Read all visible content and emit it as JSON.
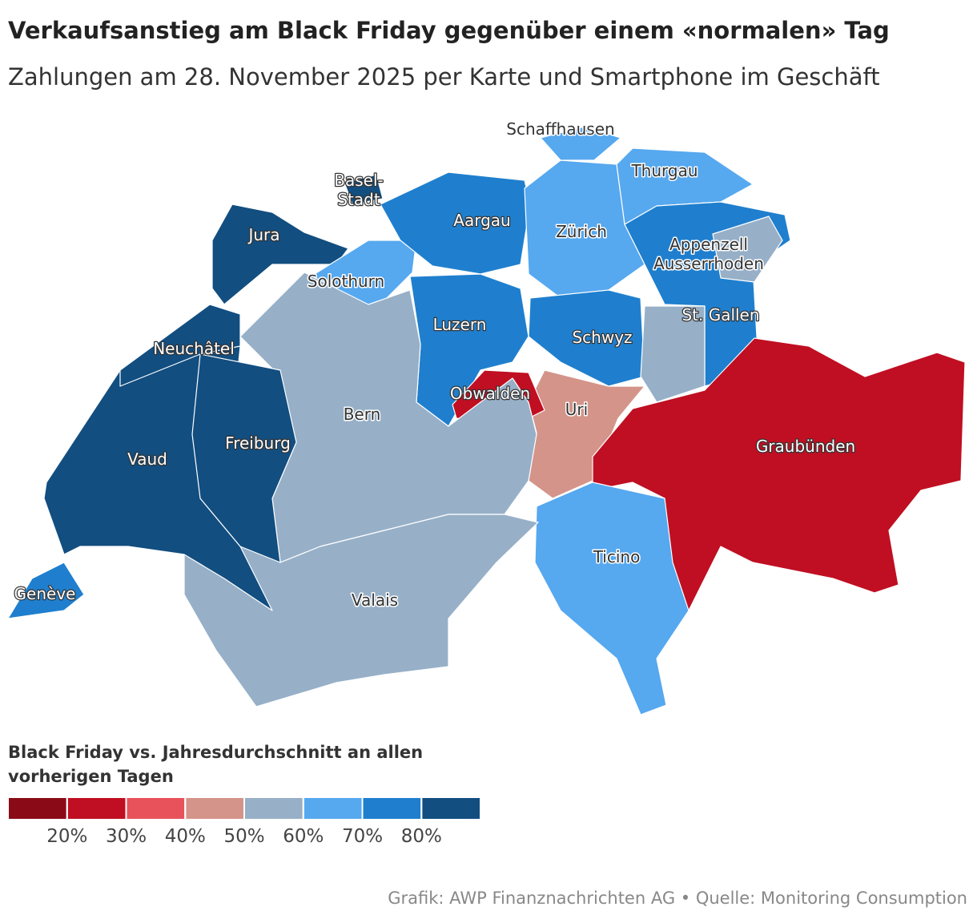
{
  "header": {
    "title": "Verkaufsanstieg am Black Friday gegenüber einem «normalen» Tag",
    "subtitle": "Zahlungen am 28. November 2025 per Karte und Smartphone im Geschäft"
  },
  "map": {
    "regions": [
      {
        "label": "Jura",
        "color": "#124e80"
      },
      {
        "label": "Basel-\nStadt",
        "color": "#124e80"
      },
      {
        "label": "Solothurn",
        "color": "#56a8ef"
      },
      {
        "label": "Aargau",
        "color": "#1f7fce"
      },
      {
        "label": "Zürich",
        "color": "#56a8ef"
      },
      {
        "label": "Thurgau",
        "color": "#56a8ef"
      },
      {
        "label": "Schaffhausen",
        "color": "#56a8ef"
      },
      {
        "label": "St. Gallen",
        "color": "#1f7fce"
      },
      {
        "label": "Appenzell\nAusserrhoden",
        "color": "#97b0c8"
      },
      {
        "label": "Luzern",
        "color": "#1f7fce"
      },
      {
        "label": "Schwyz",
        "color": "#1f7fce"
      },
      {
        "label": null,
        "color": "#97b0c8"
      },
      {
        "label": "Uri",
        "color": "#d4948a"
      },
      {
        "label": "Obwalden",
        "color": "#c00f22"
      },
      {
        "label": "Graubünden",
        "color": "#c00f22"
      },
      {
        "label": "Ticino",
        "color": "#56a8ef"
      },
      {
        "label": "Bern",
        "color": "#97b0c8"
      },
      {
        "label": "Valais",
        "color": "#97b0c8"
      },
      {
        "label": "Vaud",
        "color": "#124e80"
      },
      {
        "label": "Freiburg",
        "color": "#124e80"
      },
      {
        "label": "Neuchâtel",
        "color": "#124e80"
      },
      {
        "label": "Genève",
        "color": "#1f7fce"
      }
    ]
  },
  "legend": {
    "title": "Black Friday vs. Jahresdurchschnitt an allen\nvorherigen Tagen",
    "colors": [
      "#8a0b17",
      "#c00f22",
      "#e8525a",
      "#d4948a",
      "#97b0c8",
      "#56a8ef",
      "#1f7fce",
      "#124e80"
    ],
    "lim": [
      10,
      90
    ],
    "ticks": [
      {
        "value": 20,
        "label": "20%"
      },
      {
        "value": 30,
        "label": "30%"
      },
      {
        "value": 40,
        "label": "40%"
      },
      {
        "value": 50,
        "label": "50%"
      },
      {
        "value": 60,
        "label": "60%"
      },
      {
        "value": 70,
        "label": "70%"
      },
      {
        "value": 80,
        "label": "80%"
      }
    ]
  },
  "footer": "Grafik: AWP Finanznachrichten AG  • Quelle: Monitoring Consumption"
}
